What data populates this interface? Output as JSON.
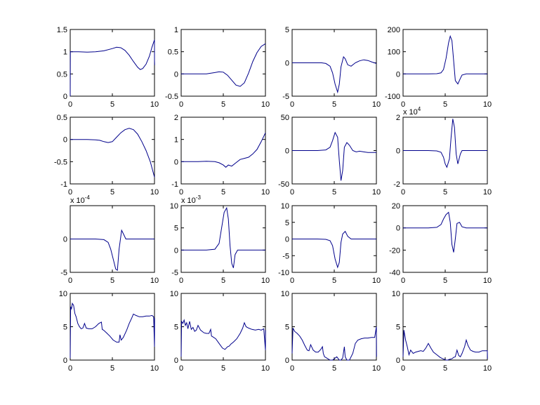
{
  "figure": {
    "background": "#ffffff",
    "line_color": "#00008b"
  },
  "chart_data": [
    {
      "type": "line",
      "xlim": [
        0,
        10
      ],
      "ylim": [
        0,
        1.5
      ],
      "xticks": [
        "0",
        "5",
        "10"
      ],
      "yticks": [
        "0",
        "0.5",
        "1",
        "1.5"
      ],
      "exponent": null,
      "series": [
        {
          "x": [
            0,
            0.02,
            0.1,
            1,
            2,
            3,
            4,
            5,
            5.5,
            6,
            6.5,
            7,
            7.5,
            8,
            8.3,
            8.6,
            9,
            9.4,
            9.7,
            10,
            10,
            10.02
          ],
          "y": [
            0,
            1,
            1,
            1,
            0.99,
            1,
            1.02,
            1.07,
            1.1,
            1.09,
            1.03,
            0.92,
            0.78,
            0.65,
            0.6,
            0.62,
            0.72,
            0.9,
            1.1,
            1.27,
            0.8,
            0.7
          ]
        }
      ]
    },
    {
      "type": "line",
      "xlim": [
        0,
        10
      ],
      "ylim": [
        -0.5,
        1
      ],
      "xticks": [
        "0",
        "5",
        "10"
      ],
      "yticks": [
        "-0.5",
        "0",
        "0.5",
        "1"
      ],
      "exponent": null,
      "series": [
        {
          "x": [
            0,
            1,
            2,
            3,
            4,
            4.5,
            5,
            5.5,
            6,
            6.5,
            7,
            7.5,
            8,
            8.5,
            9,
            9.5,
            10
          ],
          "y": [
            0,
            0,
            0,
            0,
            0.03,
            0.05,
            0.04,
            -0.03,
            -0.14,
            -0.25,
            -0.28,
            -0.2,
            0.02,
            0.28,
            0.48,
            0.62,
            0.68
          ]
        }
      ]
    },
    {
      "type": "line",
      "xlim": [
        0,
        10
      ],
      "ylim": [
        -5,
        5
      ],
      "xticks": [
        "0",
        "5",
        "10"
      ],
      "yticks": [
        "-5",
        "0",
        "5"
      ],
      "exponent": null,
      "series": [
        {
          "x": [
            0,
            2,
            3,
            3.5,
            4,
            4.5,
            4.8,
            5.1,
            5.4,
            5.6,
            5.8,
            6.1,
            6.3,
            6.6,
            7,
            7.5,
            8,
            8.5,
            9,
            9.5,
            10
          ],
          "y": [
            0,
            0,
            0,
            0,
            -0.1,
            -0.5,
            -1.5,
            -3.2,
            -4.4,
            -3.2,
            -0.6,
            0.9,
            0.6,
            -0.3,
            -0.5,
            0,
            0.3,
            0.45,
            0.35,
            0.1,
            -0.1
          ]
        }
      ]
    },
    {
      "type": "line",
      "xlim": [
        0,
        10
      ],
      "ylim": [
        -100,
        200
      ],
      "xticks": [
        "0",
        "5",
        "10"
      ],
      "yticks": [
        "-100",
        "0",
        "100",
        "200"
      ],
      "exponent": null,
      "series": [
        {
          "x": [
            0,
            3,
            4,
            4.5,
            4.8,
            5.1,
            5.4,
            5.6,
            5.8,
            6,
            6.2,
            6.5,
            6.8,
            7,
            7.5,
            8,
            10
          ],
          "y": [
            0,
            0,
            1,
            5,
            20,
            70,
            140,
            170,
            150,
            60,
            -30,
            -45,
            -20,
            -5,
            0,
            0,
            0
          ]
        }
      ]
    },
    {
      "type": "line",
      "xlim": [
        0,
        10
      ],
      "ylim": [
        -1,
        0.5
      ],
      "xticks": [
        "0",
        "5",
        "10"
      ],
      "yticks": [
        "-1",
        "-0.5",
        "0",
        "0.5"
      ],
      "exponent": null,
      "series": [
        {
          "x": [
            0,
            1,
            2,
            3,
            3.5,
            4,
            4.5,
            5,
            5.5,
            6,
            6.5,
            7,
            7.5,
            8,
            8.5,
            9,
            9.5,
            10
          ],
          "y": [
            0,
            0,
            0,
            -0.01,
            -0.02,
            -0.05,
            -0.07,
            -0.05,
            0.05,
            0.15,
            0.22,
            0.25,
            0.22,
            0.12,
            -0.05,
            -0.25,
            -0.5,
            -0.85
          ]
        }
      ]
    },
    {
      "type": "line",
      "xlim": [
        0,
        10
      ],
      "ylim": [
        -1,
        2
      ],
      "xticks": [
        "0",
        "5",
        "10"
      ],
      "yticks": [
        "-1",
        "0",
        "1",
        "2"
      ],
      "exponent": null,
      "series": [
        {
          "x": [
            0,
            1,
            2,
            3,
            4,
            4.5,
            5,
            5.3,
            5.6,
            6,
            6.5,
            7,
            7.5,
            8,
            8.5,
            9,
            9.5,
            10
          ],
          "y": [
            0,
            0,
            0,
            0.02,
            0,
            -0.05,
            -0.15,
            -0.25,
            -0.15,
            -0.2,
            -0.05,
            0.1,
            0.15,
            0.2,
            0.35,
            0.55,
            0.9,
            1.3
          ]
        }
      ]
    },
    {
      "type": "line",
      "xlim": [
        0,
        10
      ],
      "ylim": [
        -50,
        50
      ],
      "xticks": [
        "0",
        "5",
        "10"
      ],
      "yticks": [
        "-50",
        "0",
        "50"
      ],
      "exponent": null,
      "series": [
        {
          "x": [
            0,
            3,
            4,
            4.5,
            4.8,
            5.1,
            5.4,
            5.6,
            5.8,
            6,
            6.2,
            6.5,
            6.8,
            7.2,
            7.6,
            8,
            8.5,
            9,
            9.5,
            10
          ],
          "y": [
            0,
            0,
            1,
            5,
            15,
            27,
            20,
            -15,
            -45,
            -30,
            5,
            12,
            8,
            0,
            -2,
            -1,
            -2,
            -3,
            -3,
            -3
          ]
        }
      ]
    },
    {
      "type": "line",
      "xlim": [
        0,
        10
      ],
      "ylim": [
        -2,
        2
      ],
      "xticks": [
        "0",
        "5",
        "10"
      ],
      "yticks": [
        "-2",
        "0",
        "2"
      ],
      "exponent": "x 10^4",
      "series": [
        {
          "x": [
            0,
            3,
            4,
            4.5,
            4.8,
            5,
            5.2,
            5.5,
            5.7,
            5.9,
            6.1,
            6.3,
            6.5,
            6.8,
            7,
            7.5,
            8,
            10
          ],
          "y": [
            0,
            0,
            -0.02,
            -0.1,
            -0.4,
            -0.8,
            -1.0,
            -0.5,
            0.8,
            1.9,
            1.4,
            -0.2,
            -0.8,
            -0.2,
            0,
            0,
            0,
            0
          ]
        }
      ]
    },
    {
      "type": "line",
      "xlim": [
        0,
        10
      ],
      "ylim": [
        -5,
        5
      ],
      "xticks": [
        "0",
        "5",
        "10"
      ],
      "yticks": [
        "-5",
        "0"
      ],
      "exponent": "x 10^-4",
      "series": [
        {
          "x": [
            0,
            3,
            4,
            4.5,
            4.8,
            5.1,
            5.4,
            5.6,
            5.8,
            6.1,
            6.3,
            6.6,
            7,
            7.5,
            8,
            10
          ],
          "y": [
            0,
            0,
            -0.1,
            -0.5,
            -1.5,
            -3,
            -4.5,
            -4.7,
            -1.5,
            1.3,
            0.8,
            0,
            0,
            0,
            0,
            0
          ]
        }
      ]
    },
    {
      "type": "line",
      "xlim": [
        0,
        10
      ],
      "ylim": [
        -5,
        10
      ],
      "xticks": [
        "0",
        "5",
        "10"
      ],
      "yticks": [
        "-5",
        "0",
        "5",
        "10"
      ],
      "exponent": "x 10^-3",
      "series": [
        {
          "x": [
            0,
            3,
            4,
            4.5,
            4.8,
            5.1,
            5.4,
            5.6,
            5.8,
            6,
            6.2,
            6.4,
            6.7,
            7,
            7.5,
            10
          ],
          "y": [
            0,
            0,
            0.2,
            1.5,
            5,
            8.5,
            9.5,
            7,
            1,
            -3,
            -4,
            -1,
            0,
            0,
            0,
            0
          ]
        }
      ]
    },
    {
      "type": "line",
      "xlim": [
        0,
        10
      ],
      "ylim": [
        -10,
        10
      ],
      "xticks": [
        "0",
        "5",
        "10"
      ],
      "yticks": [
        "-10",
        "-5",
        "0",
        "5",
        "10"
      ],
      "exponent": null,
      "series": [
        {
          "x": [
            0,
            3,
            4,
            4.5,
            4.8,
            5.1,
            5.4,
            5.6,
            5.8,
            6,
            6.3,
            6.6,
            7,
            7.5,
            8,
            10
          ],
          "y": [
            0,
            0,
            -0.1,
            -0.5,
            -2,
            -6,
            -8.5,
            -7,
            -1,
            1.5,
            2.3,
            0.8,
            0,
            0,
            0,
            0
          ]
        }
      ]
    },
    {
      "type": "line",
      "xlim": [
        0,
        10
      ],
      "ylim": [
        -40,
        20
      ],
      "xticks": [
        "0",
        "5",
        "10"
      ],
      "yticks": [
        "-40",
        "-20",
        "0",
        "20"
      ],
      "exponent": null,
      "series": [
        {
          "x": [
            0,
            3,
            4,
            4.5,
            4.8,
            5.1,
            5.4,
            5.6,
            5.8,
            6,
            6.2,
            6.4,
            6.7,
            7,
            7.5,
            8,
            10
          ],
          "y": [
            0,
            0,
            0.5,
            3,
            8,
            12,
            14,
            5,
            -15,
            -22,
            -10,
            4,
            5,
            1,
            0,
            0,
            0
          ]
        }
      ]
    },
    {
      "type": "line",
      "xlim": [
        0,
        10
      ],
      "ylim": [
        0,
        10
      ],
      "xticks": [
        "0",
        "5",
        "10"
      ],
      "yticks": [
        "0",
        "5",
        "10"
      ],
      "exponent": null,
      "series": [
        {
          "x": [
            0,
            0.05,
            0.15,
            0.25,
            0.4,
            0.55,
            0.7,
            0.9,
            1.1,
            1.3,
            1.5,
            1.7,
            1.9,
            2.2,
            2.6,
            3,
            3.4,
            3.7,
            3.8,
            3.95,
            4.3,
            4.7,
            5.1,
            5.5,
            5.8,
            5.9,
            6.05,
            6.3,
            6.7,
            7,
            7.3,
            7.5,
            7.8,
            8.2,
            8.6,
            9,
            9.4,
            9.7,
            9.9,
            10,
            10.02
          ],
          "y": [
            0.3,
            8,
            7.7,
            8.5,
            8.2,
            7,
            6.5,
            5.5,
            5,
            4.7,
            4.8,
            5.5,
            4.8,
            4.7,
            4.7,
            5,
            5.5,
            5.7,
            4.6,
            4.5,
            4.1,
            3.6,
            3,
            2.7,
            2.7,
            3.8,
            3,
            3.4,
            4.5,
            5.5,
            6.3,
            6.9,
            6.7,
            6.5,
            6.5,
            6.6,
            6.6,
            6.7,
            6.5,
            2,
            6.3
          ]
        }
      ]
    },
    {
      "type": "line",
      "xlim": [
        0,
        10
      ],
      "ylim": [
        0,
        10
      ],
      "xticks": [
        "0",
        "5",
        "10"
      ],
      "yticks": [
        "0",
        "5",
        "10"
      ],
      "exponent": null,
      "series": [
        {
          "x": [
            0,
            0.05,
            0.2,
            0.35,
            0.5,
            0.65,
            0.8,
            1,
            1.2,
            1.4,
            1.6,
            1.8,
            2,
            2.3,
            2.7,
            3,
            3.3,
            3.5,
            3.6,
            3.75,
            4.1,
            4.5,
            4.9,
            5.2,
            5.5,
            5.7,
            5.9,
            6.2,
            6.6,
            7,
            7.3,
            7.5,
            7.7,
            8,
            8.4,
            8.8,
            9.2,
            9.5,
            9.8,
            10,
            10.02
          ],
          "y": [
            0.5,
            5.8,
            5.5,
            6,
            5.2,
            5.6,
            4.7,
            5.8,
            4.6,
            4.9,
            4.3,
            4.5,
            5.2,
            4.5,
            4.1,
            4,
            4,
            4.6,
            3.6,
            3.5,
            3.2,
            2.5,
            1.8,
            1.6,
            2,
            2.1,
            2.4,
            2.7,
            3.2,
            4,
            4.8,
            5.6,
            5,
            4.8,
            4.6,
            4.5,
            4.6,
            4.5,
            4.7,
            1.5,
            4.5
          ]
        }
      ]
    },
    {
      "type": "line",
      "xlim": [
        0,
        10
      ],
      "ylim": [
        0,
        10
      ],
      "xticks": [
        "0",
        "5",
        "10"
      ],
      "yticks": [
        "0",
        "5",
        "10"
      ],
      "exponent": null,
      "series": [
        {
          "x": [
            0,
            0.1,
            0.3,
            0.6,
            0.9,
            1.2,
            1.5,
            1.8,
            2,
            2.2,
            2.5,
            2.8,
            3.1,
            3.4,
            3.6,
            3.7,
            3.85,
            4.1,
            4.5,
            4.8,
            5,
            5.3,
            5.6,
            5.8,
            6,
            6.2,
            6.3,
            6.5,
            6.8,
            7.2,
            7.5,
            7.8,
            8.2,
            8.6,
            9,
            9.4,
            9.8,
            10,
            10.02
          ],
          "y": [
            1,
            4.8,
            4.3,
            4,
            3.6,
            3,
            2.2,
            1.5,
            1.4,
            2.3,
            1.5,
            1.2,
            1.2,
            1.6,
            2,
            1,
            0.5,
            0.3,
            0,
            0,
            0.2,
            0.5,
            0,
            0,
            0.3,
            2,
            0.5,
            0,
            0,
            1,
            2.5,
            3,
            3.2,
            3.3,
            3.3,
            3.4,
            3.4,
            5,
            0.5
          ]
        }
      ]
    },
    {
      "type": "line",
      "xlim": [
        0,
        10
      ],
      "ylim": [
        0,
        10
      ],
      "xticks": [
        "0",
        "5",
        "10"
      ],
      "yticks": [
        "0",
        "5",
        "10"
      ],
      "exponent": null,
      "series": [
        {
          "x": [
            0,
            0.1,
            0.3,
            0.5,
            0.7,
            0.9,
            1.2,
            1.5,
            1.8,
            2.1,
            2.4,
            2.7,
            3,
            3.3,
            3.6,
            4,
            4.4,
            4.7,
            4.9,
            5.1,
            5.3,
            5.5,
            5.8,
            6,
            6.2,
            6.4,
            6.6,
            6.8,
            7,
            7.3,
            7.5,
            7.7,
            8,
            8.3,
            8.6,
            9,
            9.4,
            9.7,
            10,
            10.02
          ],
          "y": [
            0.5,
            4.5,
            3,
            2,
            0.8,
            1.5,
            1,
            1.2,
            1.3,
            1.4,
            1.3,
            1.8,
            2.5,
            1.8,
            1.2,
            0.8,
            0.4,
            0.2,
            0.1,
            0,
            0,
            0.1,
            0.2,
            0.4,
            0.5,
            1.5,
            0.7,
            0.5,
            1,
            2,
            3,
            2.2,
            1.5,
            1.3,
            1.2,
            1.2,
            1.4,
            1.4,
            1.4,
            0.2
          ]
        }
      ]
    }
  ]
}
